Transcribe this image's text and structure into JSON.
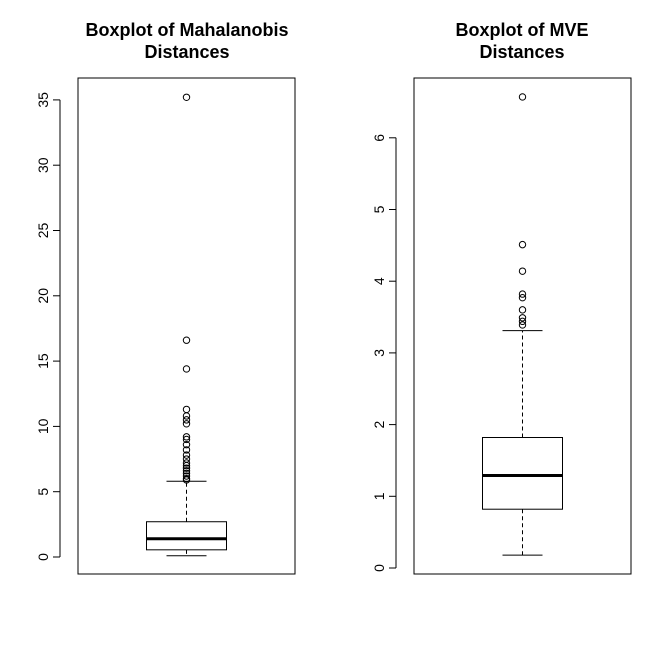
{
  "chart_data": [
    {
      "type": "boxplot",
      "title_lines": [
        "Boxplot of Mahalanobis",
        "Distances"
      ],
      "xlabel": "",
      "ylabel": "",
      "ylim": [
        0,
        35.5
      ],
      "yticks": [
        0,
        5,
        10,
        15,
        20,
        25,
        30,
        35
      ],
      "grid": false,
      "box": {
        "min": 0.1,
        "q1": 0.55,
        "median": 1.4,
        "q3": 2.7,
        "max": 5.8
      },
      "outliers": [
        35.2,
        16.6,
        14.4,
        11.3,
        10.8,
        10.5,
        10.2,
        9.2,
        9.0,
        8.6,
        8.2,
        7.8,
        7.5,
        7.2,
        7.0,
        6.8,
        6.6,
        6.4,
        6.2,
        6.0,
        5.9
      ]
    },
    {
      "type": "boxplot",
      "title_lines": [
        "Boxplot of MVE",
        "Distances"
      ],
      "xlabel": "",
      "ylabel": "",
      "ylim": [
        0,
        6.6
      ],
      "yticks": [
        0,
        1,
        2,
        3,
        4,
        5,
        6
      ],
      "grid": false,
      "box": {
        "min": 0.18,
        "q1": 0.82,
        "median": 1.29,
        "q3": 1.82,
        "max": 3.31
      },
      "outliers": [
        6.57,
        4.51,
        4.14,
        3.82,
        3.77,
        3.6,
        3.49,
        3.44,
        3.39
      ]
    }
  ]
}
